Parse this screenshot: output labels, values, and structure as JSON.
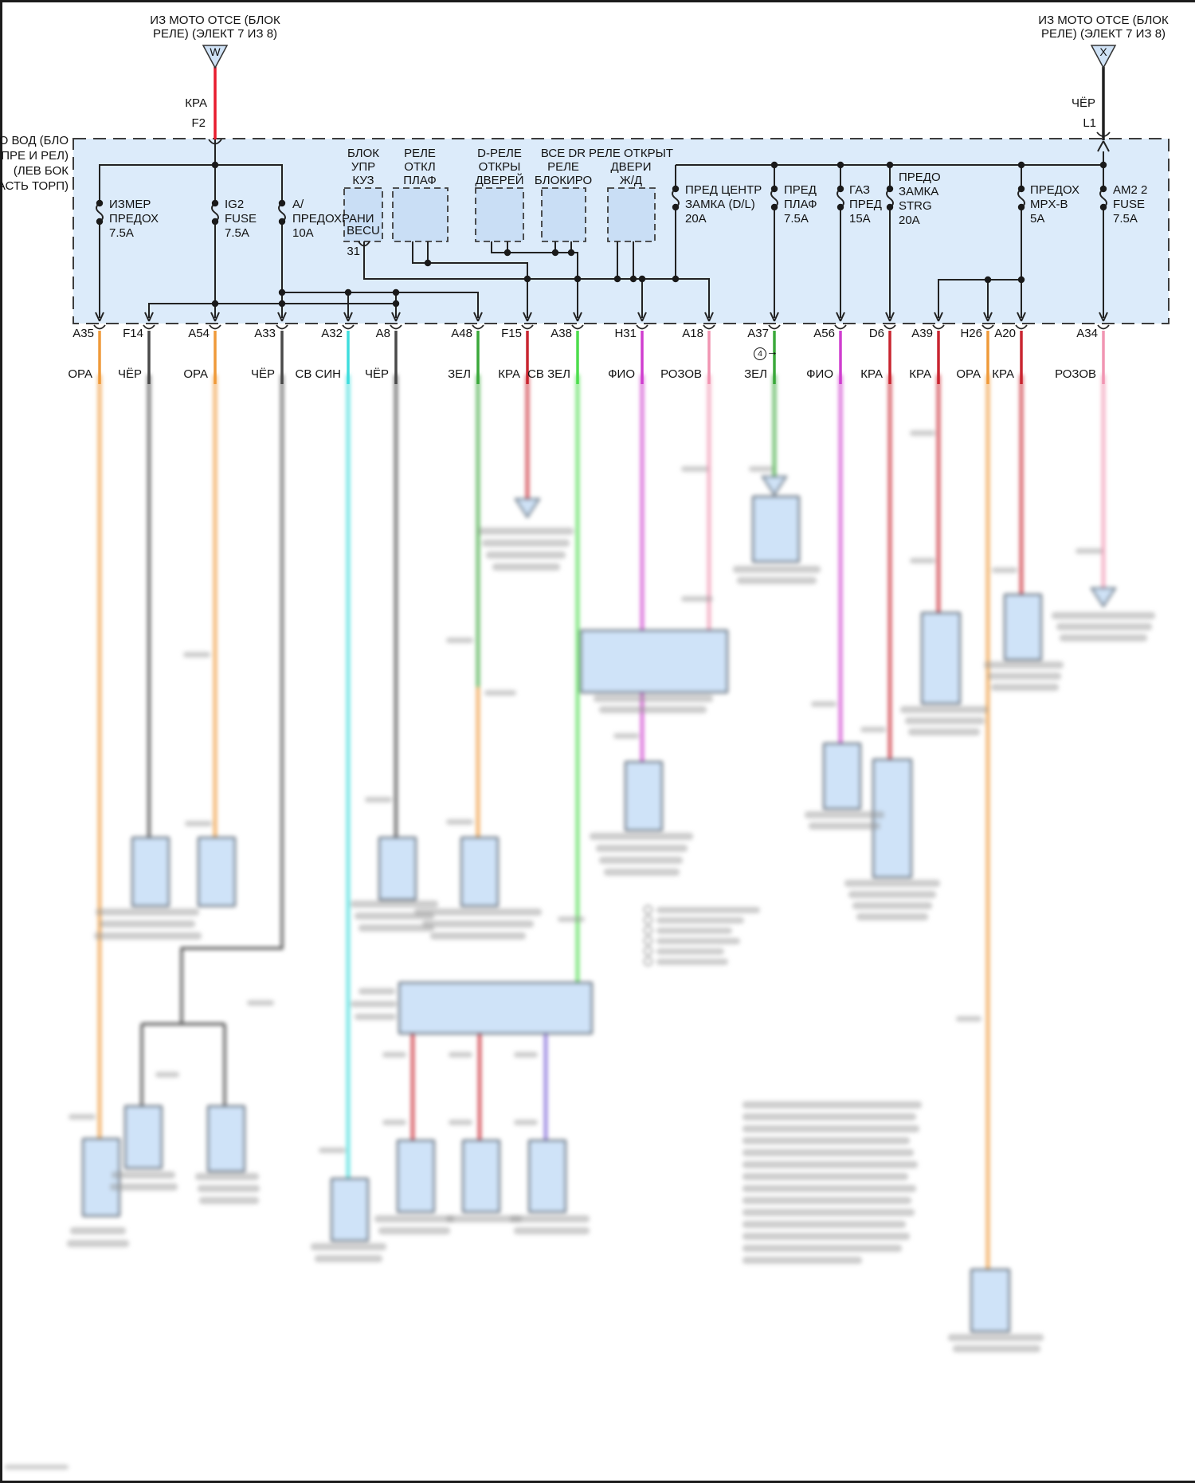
{
  "connectors": {
    "left": {
      "note": "ИЗ МОТО ОТСЕ (БЛОК\nРЕЛЕ) (ЭЛЕКТ 7 ИЗ 8)",
      "letter": "W",
      "wire_color": "КРА",
      "pin": "F2"
    },
    "right": {
      "note": "ИЗ МОТО ОТСЕ (БЛОК\nРЕЛЕ) (ЭЛЕКТ 7 ИЗ 8)",
      "letter": "X",
      "wire_color": "ЧЁР",
      "pin": "L1"
    }
  },
  "junction_box": {
    "outside_label": "СТО ВОД (БЛО\nПРЕ И РЕЛ)\n(ЛЕВ БОК\nЧАСТЬ ТОРП)",
    "fuses": [
      {
        "label": "ИЗМЕР\nПРЕДОХ\n7.5А"
      },
      {
        "label": "IG2\nFUSE\n7.5А"
      },
      {
        "label": "А/\nПРЕДОХРАНИ\n10А"
      },
      {
        "label": "ПРЕД ЦЕНТР\nЗАМКА (D/L)\n20А"
      },
      {
        "label": "ПРЕД\nПЛАФ\n7.5А"
      },
      {
        "label": "ГАЗ\nПРЕД\n15А"
      },
      {
        "label": "ПРЕДО\nЗАМКА\nSTRG\n20А"
      },
      {
        "label": "ПРЕДОХ\nMPX-B\n5А"
      },
      {
        "label": "AM2 2\nFUSE\n7.5А"
      }
    ],
    "relays": [
      {
        "label": "БЛОК\nУПР\nКУЗ",
        "inner": "BECU",
        "pin": "31"
      },
      {
        "label": "РЕЛЕ\nОТКЛ\nПЛАФ"
      },
      {
        "label": "D-РЕЛЕ\nОТКРЫ\nДВЕРЕЙ"
      },
      {
        "label": "ВСЕ DR\nРЕЛЕ\nБЛОКИРО"
      },
      {
        "label": "РЕЛЕ ОТКРЫТ\nДВЕРИ\nЖ/Д"
      }
    ]
  },
  "pins": [
    {
      "id": "A35",
      "color": "ОРА"
    },
    {
      "id": "F14",
      "color": "ЧЁР"
    },
    {
      "id": "A54",
      "color": "ОРА"
    },
    {
      "id": "A33",
      "color": "ЧЁР"
    },
    {
      "id": "A32",
      "color": "СВ СИН"
    },
    {
      "id": "A8",
      "color": "ЧЁР"
    },
    {
      "id": "A48",
      "color": "ЗЕЛ"
    },
    {
      "id": "F15",
      "color": "КРА"
    },
    {
      "id": "A38",
      "color": "СВ ЗЕЛ"
    },
    {
      "id": "H31",
      "color": "ФИО"
    },
    {
      "id": "A18",
      "color": "РОЗОВ"
    },
    {
      "id": "A37",
      "color": "ЗЕЛ"
    },
    {
      "id": "A56",
      "color": "ФИО"
    },
    {
      "id": "D6",
      "color": "КРА"
    },
    {
      "id": "A39",
      "color": "КРА"
    },
    {
      "id": "H26",
      "color": "ОРА"
    },
    {
      "id": "A20",
      "color": "КРА"
    },
    {
      "id": "A34",
      "color": "РОЗОВ"
    }
  ],
  "annotation": {
    "number": "4",
    "arrow": "→"
  },
  "wire_colors": {
    "ОРА": "#ef9a3a",
    "ЧЁР": "#4a4a4a",
    "СВ СИН": "#3edddd",
    "ЗЕЛ": "#3aa83a",
    "КРА": "#c92530",
    "СВ ЗЕЛ": "#4cdd4c",
    "ФИО": "#cf3ecf",
    "РОЗОВ": "#f195b2"
  },
  "accent": {
    "box_fill": "#dcebfa",
    "relay_fill": "#c9def5",
    "top_red_wire": "#e81c2e",
    "top_black_wire": "#202020"
  }
}
